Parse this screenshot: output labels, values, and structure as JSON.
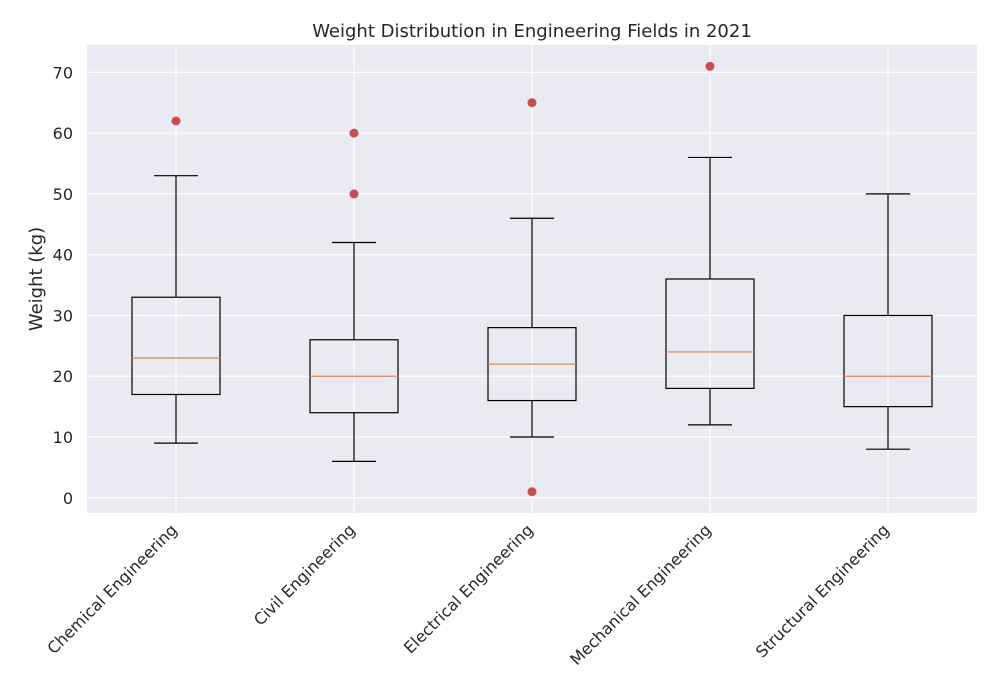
{
  "chart_data": {
    "type": "box",
    "title": "Weight Distribution in Engineering Fields in 2021",
    "xlabel": "",
    "ylabel": "Weight (kg)",
    "ylim": [
      -2.5,
      74.5
    ],
    "yticks": [
      0,
      10,
      20,
      30,
      40,
      50,
      60,
      70
    ],
    "grid": true,
    "categories": [
      "Chemical Engineering",
      "Civil Engineering",
      "Electrical Engineering",
      "Mechanical Engineering",
      "Structural Engineering"
    ],
    "boxes": [
      {
        "min": 9,
        "q1": 17,
        "median": 23,
        "q3": 33,
        "max": 53,
        "outliers": [
          62
        ]
      },
      {
        "min": 6,
        "q1": 14,
        "median": 20,
        "q3": 26,
        "max": 42,
        "outliers": [
          50,
          60
        ]
      },
      {
        "min": 10,
        "q1": 16,
        "median": 22,
        "q3": 28,
        "max": 46,
        "outliers": [
          1,
          65
        ]
      },
      {
        "min": 12,
        "q1": 18,
        "median": 24,
        "q3": 36,
        "max": 56,
        "outliers": [
          71
        ]
      },
      {
        "min": 8,
        "q1": 15,
        "median": 20,
        "q3": 30,
        "max": 50,
        "outliers": []
      }
    ],
    "colors": {
      "background": "#EAEAF2",
      "grid": "#FFFFFF",
      "box": "#000000",
      "median": "#DD8452",
      "outlier": "#C44E52"
    }
  }
}
